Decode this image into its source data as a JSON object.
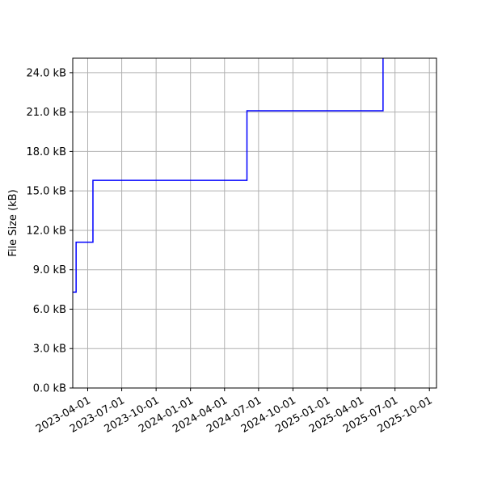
{
  "chart_data": {
    "type": "line",
    "line_style": "step-post",
    "title": "",
    "xlabel": "",
    "ylabel": "File Size (kB)",
    "grid": true,
    "colors": {
      "series": "#0000ff",
      "grid": "#b0b0b0"
    },
    "xlim": [
      "2023-02-20",
      "2025-10-20"
    ],
    "ylim": [
      0,
      25.1
    ],
    "x_ticks": [
      "2023-04-01",
      "2023-07-01",
      "2023-10-01",
      "2024-01-01",
      "2024-04-01",
      "2024-07-01",
      "2024-10-01",
      "2025-01-01",
      "2025-04-01",
      "2025-07-01",
      "2025-10-01"
    ],
    "y_ticks": [
      0,
      3,
      6,
      9,
      12,
      15,
      18,
      21,
      24
    ],
    "y_tick_labels": [
      "0.0 kB",
      "3.0 kB",
      "6.0 kB",
      "9.0 kB",
      "12.0 kB",
      "15.0 kB",
      "18.0 kB",
      "21.0 kB",
      "24.0 kB"
    ],
    "series": [
      {
        "x": [
          "2023-02-20",
          "2023-03-01",
          "2023-04-15",
          "2024-05-31",
          "2025-05-30",
          "2025-05-30"
        ],
        "values": [
          7.3,
          11.1,
          15.8,
          21.1,
          21.1,
          25.1
        ]
      }
    ]
  }
}
